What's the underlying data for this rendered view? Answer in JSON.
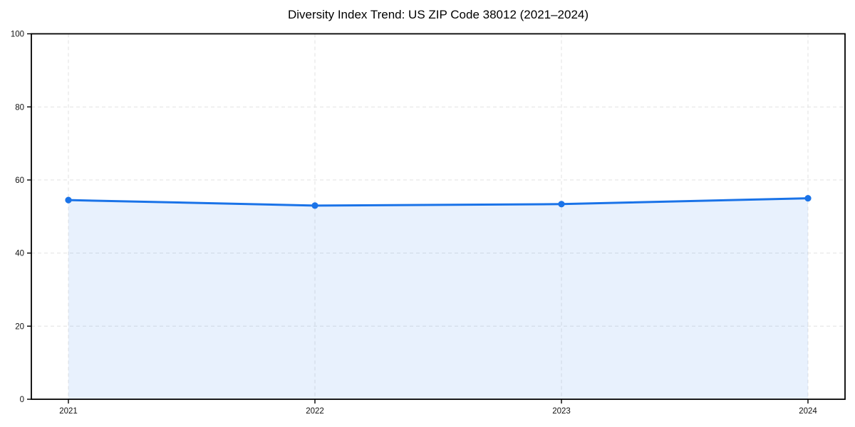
{
  "title": "Diversity Index Trend: US ZIP Code 38012 (2021–2024)",
  "chart_data": {
    "type": "area",
    "x": [
      "2021",
      "2022",
      "2023",
      "2024"
    ],
    "series": [
      {
        "name": "Diversity Index",
        "values": [
          54.5,
          53.0,
          53.4,
          55.0
        ]
      }
    ],
    "title": "Diversity Index Trend: US ZIP Code 38012 (2021–2024)",
    "xlabel": "",
    "ylabel": "",
    "ylim": [
      0,
      100
    ],
    "yticks": [
      0,
      20,
      40,
      60,
      80,
      100
    ],
    "grid": "dashed-both-axes",
    "legend": "none",
    "colors": {
      "line": "#1a73e8",
      "marker": "#1a73e8",
      "fill_rgba": "rgba(26,115,232,0.10)",
      "gridline": "#e2e2e2",
      "spine": "#000000",
      "tick_label": "#111111",
      "title": "#000000"
    }
  }
}
